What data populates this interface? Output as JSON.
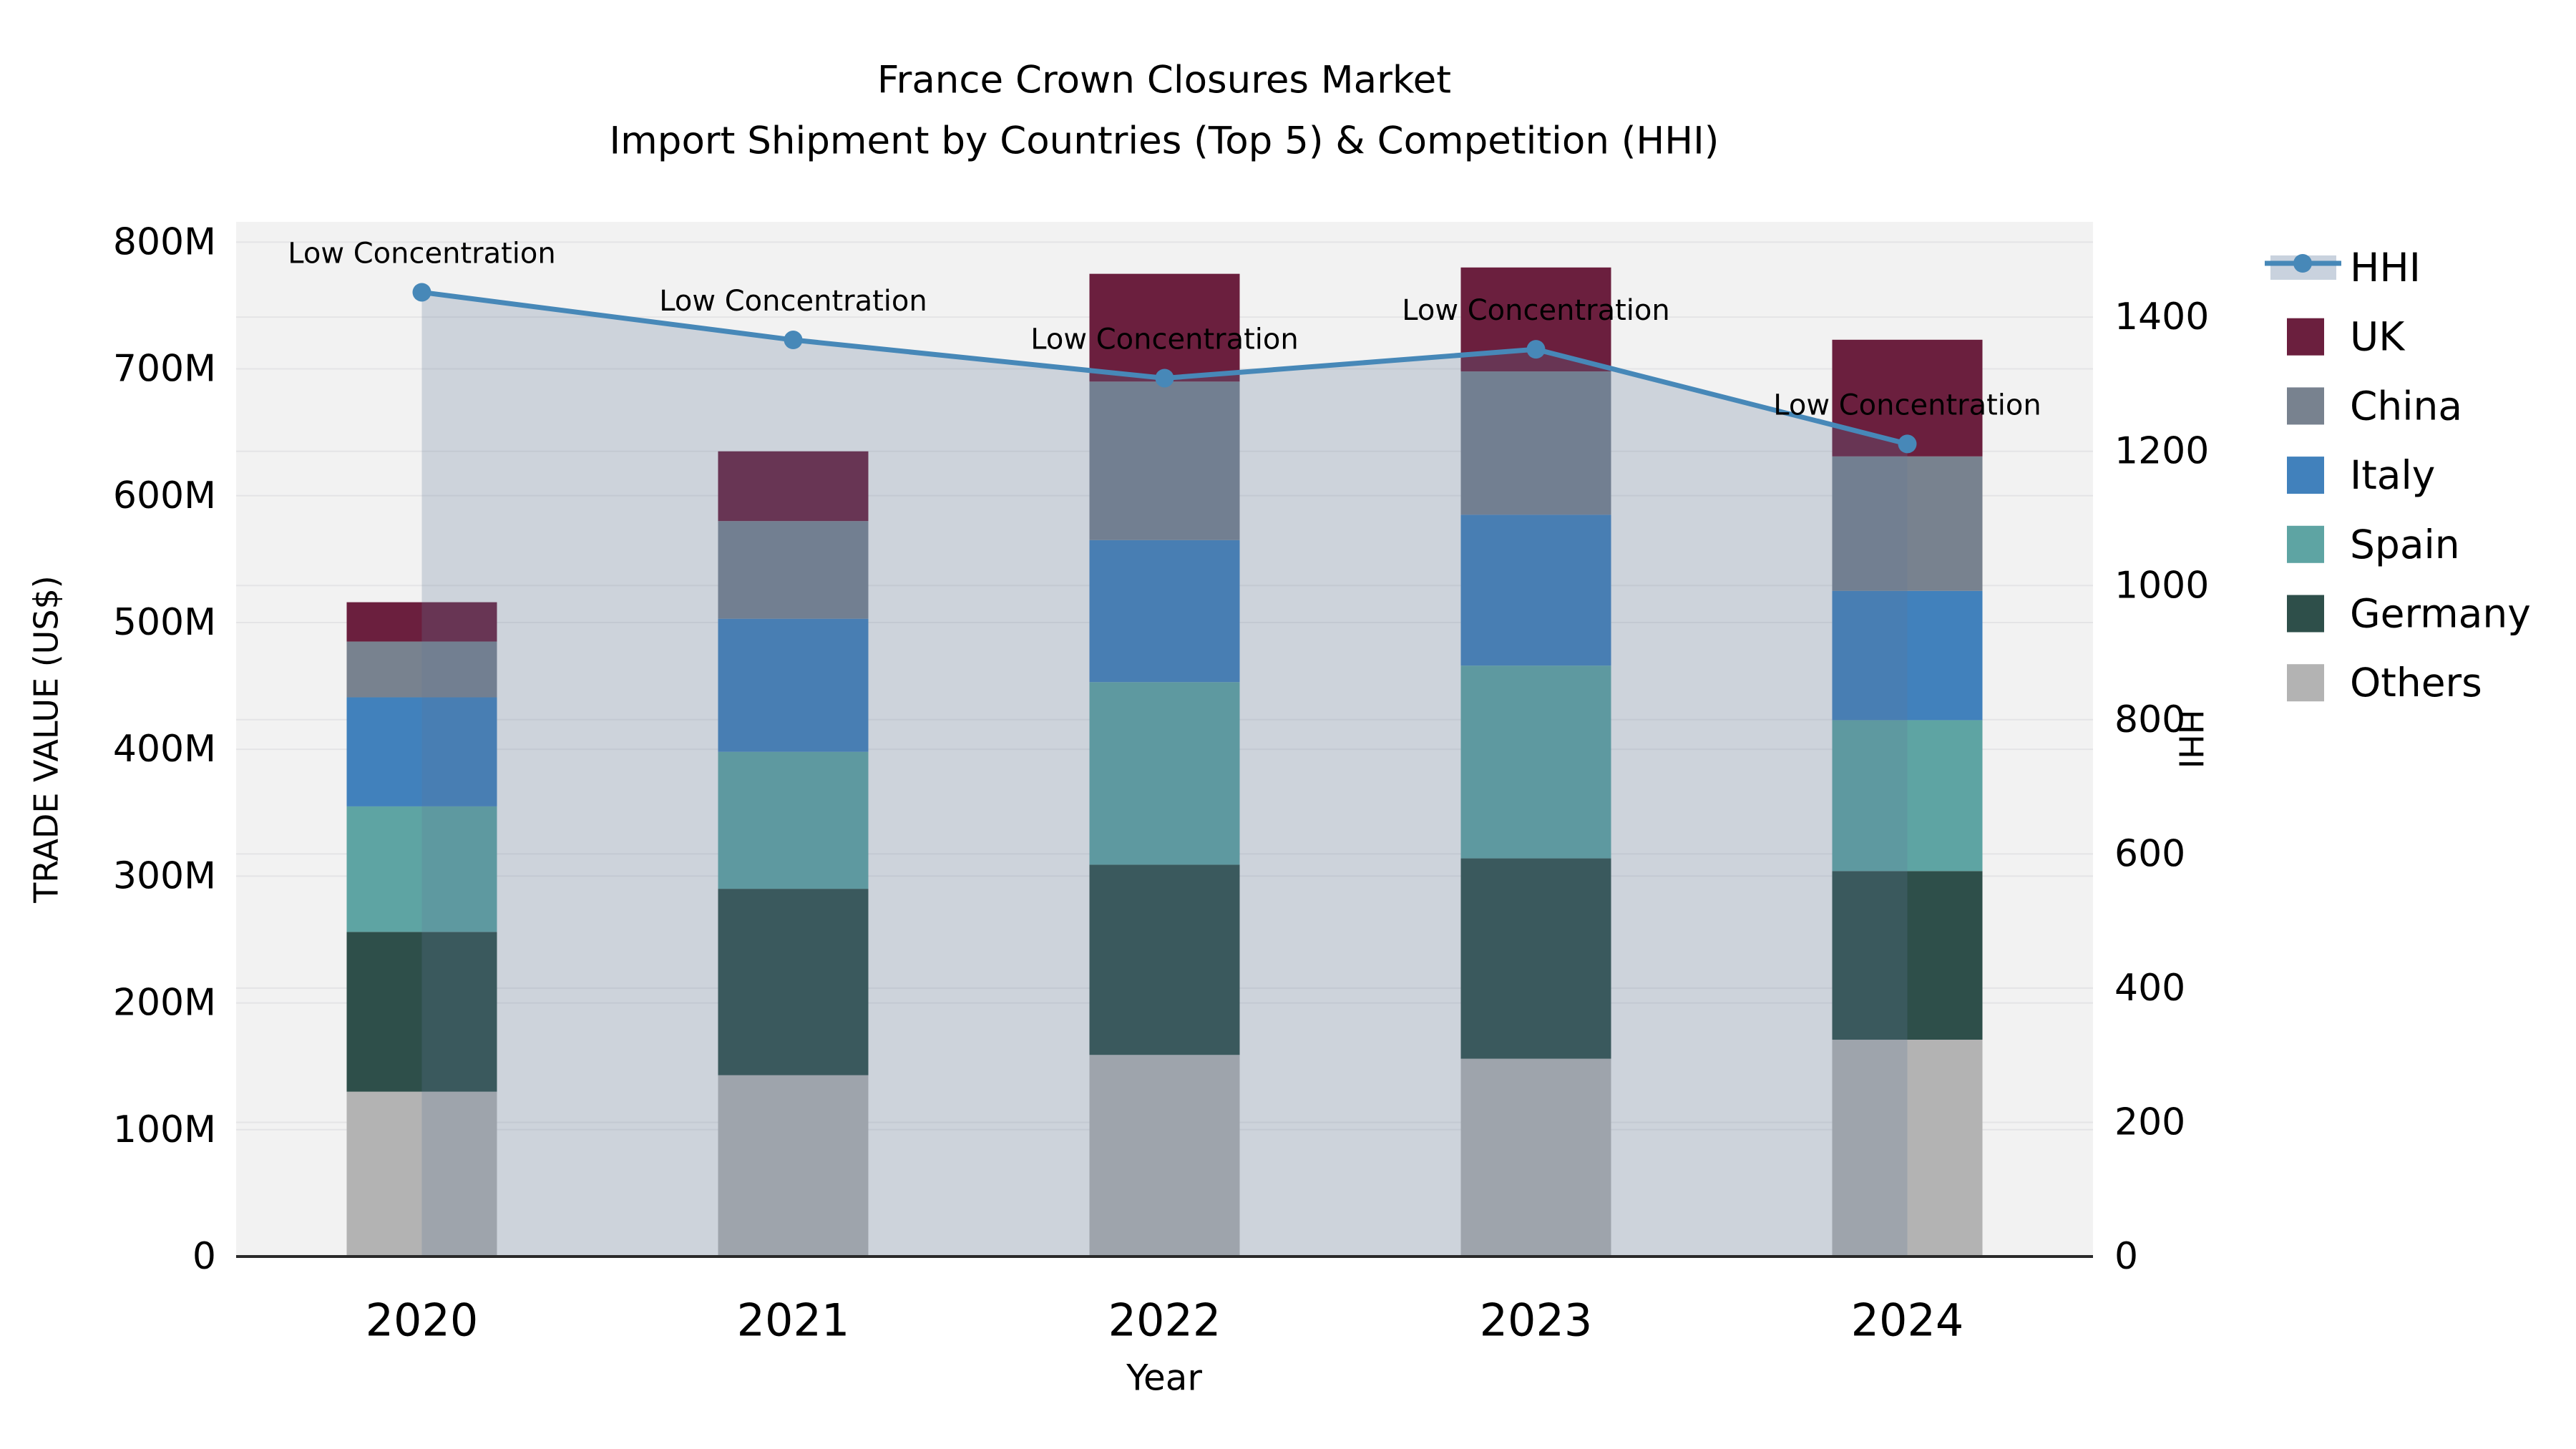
{
  "title": {
    "line1": "France Crown Closures Market",
    "line2": "Import Shipment by Countries (Top 5) & Competition (HHI)"
  },
  "axes": {
    "x_label": "Year",
    "y_left_label": "TRADE VALUE (US$)",
    "y_right_label": "HHI",
    "y_left_tick_labels": [
      "0",
      "100M",
      "200M",
      "300M",
      "400M",
      "500M",
      "600M",
      "700M",
      "800M"
    ],
    "y_left_tick_values": [
      0,
      100,
      200,
      300,
      400,
      500,
      600,
      700,
      800
    ],
    "y_right_tick_labels": [
      "0",
      "200",
      "400",
      "600",
      "800",
      "1000",
      "1200",
      "1400"
    ],
    "y_right_tick_values": [
      0,
      200,
      400,
      600,
      800,
      1000,
      1200,
      1400
    ],
    "x_tick_labels": [
      "2020",
      "2021",
      "2022",
      "2023",
      "2024"
    ]
  },
  "legend": {
    "entries": [
      {
        "label": "HHI",
        "type": "line",
        "color": "#4788b8",
        "band_color": "#c9d2de"
      },
      {
        "label": "UK",
        "type": "patch",
        "color": "#6b1f3e"
      },
      {
        "label": "China",
        "type": "patch",
        "color": "#78828f"
      },
      {
        "label": "Italy",
        "type": "patch",
        "color": "#4181bc"
      },
      {
        "label": "Spain",
        "type": "patch",
        "color": "#5ea4a3"
      },
      {
        "label": "Germany",
        "type": "patch",
        "color": "#2e4f4a"
      },
      {
        "label": "Others",
        "type": "patch",
        "color": "#b3b3b3"
      }
    ]
  },
  "chart_data": {
    "type": "bar",
    "subtype": "stacked bars (left axis, trade value M US$) + HHI line with markers (right axis)",
    "categories": [
      "2020",
      "2021",
      "2022",
      "2023",
      "2024"
    ],
    "series": [
      {
        "name": "Others",
        "color": "#b3b3b3",
        "values": [
          130,
          143,
          159,
          156,
          171
        ]
      },
      {
        "name": "Germany",
        "color": "#2e4f4a",
        "values": [
          126,
          147,
          150,
          158,
          133
        ]
      },
      {
        "name": "Spain",
        "color": "#5ea4a3",
        "values": [
          99,
          108,
          144,
          152,
          119
        ]
      },
      {
        "name": "Italy",
        "color": "#4181bc",
        "values": [
          86,
          105,
          112,
          119,
          102
        ]
      },
      {
        "name": "China",
        "color": "#78828f",
        "values": [
          44,
          77,
          125,
          113,
          106
        ]
      },
      {
        "name": "UK",
        "color": "#6b1f3e",
        "values": [
          31,
          55,
          85,
          82,
          92
        ]
      }
    ],
    "bar_totals": [
      516,
      635,
      775,
      780,
      723
    ],
    "hhi_line": {
      "name": "HHI",
      "color": "#4788b8",
      "fill_rgba": [
        95,
        120,
        150,
        0.25
      ],
      "values": [
        1437,
        1366,
        1309,
        1352,
        1211
      ]
    },
    "annotations": [
      "Low Concentration",
      "Low Concentration",
      "Low Concentration",
      "Low Concentration",
      "Low Concentration"
    ],
    "title": "France Crown Closures Market — Import Shipment by Countries (Top 5) & Competition (HHI)",
    "xlabel": "Year",
    "ylabel_left": "TRADE VALUE (US$)",
    "ylabel_right": "HHI",
    "ylim_left": [
      0,
      816
    ],
    "ylim_right": [
      0,
      1542
    ],
    "grid": true,
    "legend_position": "right"
  },
  "colors": {
    "figure_bg": "#ffffff",
    "plot_bg": "#f2f2f2",
    "gridline": "#e4e4e6",
    "spine": "#2a2a2a",
    "text": "#000000"
  }
}
